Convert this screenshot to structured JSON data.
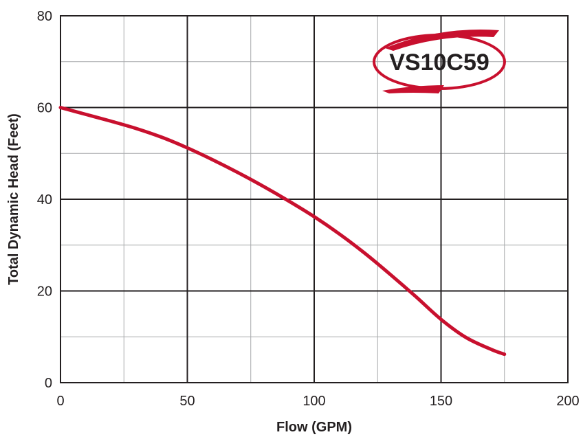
{
  "chart_data": {
    "type": "line",
    "title": "",
    "xlabel": "Flow (GPM)",
    "ylabel": "Total Dynamic Head (Feet)",
    "xlim": [
      0,
      200
    ],
    "ylim": [
      0,
      80
    ],
    "x_ticks": [
      0,
      50,
      100,
      150,
      200
    ],
    "y_ticks": [
      0,
      20,
      40,
      60,
      80
    ],
    "x_tick_labels": [
      "0",
      "50",
      "100",
      "150",
      "200"
    ],
    "y_tick_labels": [
      "0",
      "20",
      "40",
      "60",
      "80"
    ],
    "x_minor_step": 25,
    "y_minor_step": 10,
    "grid": true,
    "model_badge": "VS10C59",
    "series": [
      {
        "x": [
          0,
          10,
          20,
          30,
          40,
          50,
          60,
          70,
          80,
          90,
          100,
          110,
          120,
          130,
          140,
          150,
          160,
          170,
          175
        ],
        "y": [
          60,
          58.5,
          57,
          55.4,
          53.5,
          51.2,
          48.6,
          45.8,
          42.8,
          39.6,
          36.2,
          32.4,
          28.2,
          23.6,
          18.8,
          13.8,
          9.8,
          7.2,
          6.2
        ],
        "color": "#c8102e"
      }
    ],
    "colors": {
      "curve": "#c8102e",
      "grid_major": "#231f20",
      "grid_minor": "#a7a9ac",
      "badge": "#c8102e"
    }
  }
}
